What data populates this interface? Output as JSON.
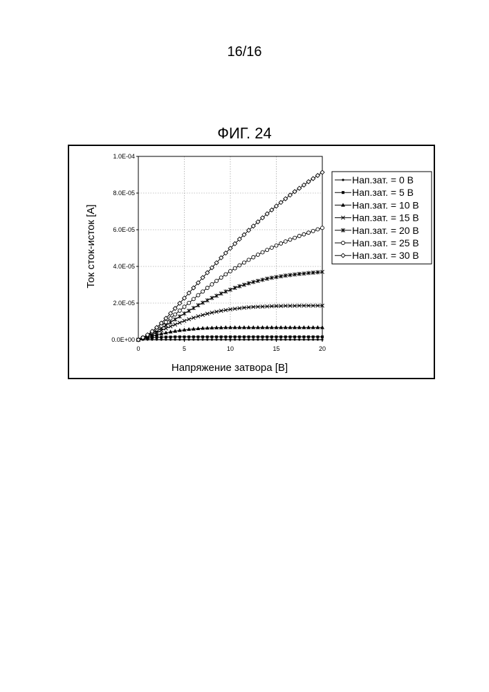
{
  "page": {
    "number": "16/16",
    "figure_title": "ФИГ. 24"
  },
  "chart_data": {
    "type": "line",
    "title": "",
    "xlabel": "Напряжение затвора [В]",
    "ylabel": "Ток сток-исток [А]",
    "xlim": [
      0,
      20
    ],
    "ylim": [
      0,
      0.0001
    ],
    "xticks": [
      "0",
      "5",
      "10",
      "15",
      "20"
    ],
    "yticks": [
      "0.0E+00",
      "2.0E-05",
      "4.0E-05",
      "6.0E-05",
      "8.0E-05",
      "1.0E-04"
    ],
    "grid": true,
    "legend_position": "right",
    "x": [
      0,
      0.5,
      1,
      1.5,
      2,
      2.5,
      3,
      3.5,
      4,
      4.5,
      5,
      5.5,
      6,
      6.5,
      7,
      7.5,
      8,
      8.5,
      9,
      9.5,
      10,
      10.5,
      11,
      11.5,
      12,
      12.5,
      13,
      13.5,
      14,
      14.5,
      15,
      15.5,
      16,
      16.5,
      17,
      17.5,
      18,
      18.5,
      19,
      19.5,
      20
    ],
    "series": [
      {
        "name": "Нап.зат. = 0 В",
        "marker": "dot",
        "values": [
          0.0,
          5e-08,
          1e-07,
          1e-07,
          1e-07,
          1e-07,
          1e-07,
          1e-07,
          1e-07,
          1e-07,
          1e-07,
          1e-07,
          1e-07,
          1e-07,
          1e-07,
          1e-07,
          1e-07,
          1e-07,
          1e-07,
          1e-07,
          1e-07,
          1e-07,
          1e-07,
          1e-07,
          1e-07,
          1e-07,
          1e-07,
          1e-07,
          1e-07,
          1e-07,
          1e-07,
          1e-07,
          1e-07,
          1e-07,
          1e-07,
          1e-07,
          1e-07,
          1e-07,
          1e-07,
          1e-07,
          1e-07
        ]
      },
      {
        "name": "Нап.зат. = 5 В",
        "marker": "square",
        "values": [
          0.0,
          4e-07,
          8e-07,
          1.1e-06,
          1.3e-06,
          1.4e-06,
          1.5e-06,
          1.5e-06,
          1.6e-06,
          1.6e-06,
          1.6e-06,
          1.6e-06,
          1.6e-06,
          1.6e-06,
          1.6e-06,
          1.6e-06,
          1.6e-06,
          1.6e-06,
          1.6e-06,
          1.6e-06,
          1.6e-06,
          1.6e-06,
          1.6e-06,
          1.6e-06,
          1.6e-06,
          1.6e-06,
          1.6e-06,
          1.6e-06,
          1.6e-06,
          1.6e-06,
          1.6e-06,
          1.6e-06,
          1.6e-06,
          1.6e-06,
          1.6e-06,
          1.6e-06,
          1.6e-06,
          1.6e-06,
          1.6e-06,
          1.6e-06,
          1.6e-06
        ]
      },
      {
        "name": "Нап.зат. = 10 В",
        "marker": "triangle",
        "values": [
          0.0,
          7e-07,
          1.4e-06,
          2.1e-06,
          2.7e-06,
          3.3e-06,
          3.8e-06,
          4.3e-06,
          4.7e-06,
          5.1e-06,
          5.4e-06,
          5.7e-06,
          5.9e-06,
          6.1e-06,
          6.3e-06,
          6.4e-06,
          6.5e-06,
          6.6e-06,
          6.6e-06,
          6.7e-06,
          6.7e-06,
          6.7e-06,
          6.7e-06,
          6.7e-06,
          6.7e-06,
          6.7e-06,
          6.7e-06,
          6.7e-06,
          6.7e-06,
          6.7e-06,
          6.7e-06,
          6.7e-06,
          6.7e-06,
          6.7e-06,
          6.7e-06,
          6.7e-06,
          6.7e-06,
          6.7e-06,
          6.7e-06,
          6.7e-06,
          6.7e-06
        ]
      },
      {
        "name": "Нап.зат. = 15 В",
        "marker": "x",
        "values": [
          0.0,
          9e-07,
          1.9e-06,
          2.9e-06,
          4e-06,
          5.1e-06,
          6.2e-06,
          7.3e-06,
          8.3e-06,
          9.3e-06,
          1.03e-05,
          1.12e-05,
          1.2e-05,
          1.28e-05,
          1.35e-05,
          1.42e-05,
          1.48e-05,
          1.53e-05,
          1.58e-05,
          1.62e-05,
          1.66e-05,
          1.69e-05,
          1.72e-05,
          1.75e-05,
          1.77e-05,
          1.79e-05,
          1.8e-05,
          1.81e-05,
          1.82e-05,
          1.83e-05,
          1.84e-05,
          1.84e-05,
          1.85e-05,
          1.85e-05,
          1.85e-05,
          1.86e-05,
          1.86e-05,
          1.86e-05,
          1.86e-05,
          1.86e-05,
          1.86e-05
        ]
      },
      {
        "name": "Нап.зат. = 20 В",
        "marker": "star",
        "values": [
          0.0,
          1e-06,
          2.2e-06,
          3.5e-06,
          4.9e-06,
          6.4e-06,
          7.9e-06,
          9.5e-06,
          1.11e-05,
          1.27e-05,
          1.43e-05,
          1.58e-05,
          1.73e-05,
          1.88e-05,
          2.02e-05,
          2.15e-05,
          2.28e-05,
          2.4e-05,
          2.52e-05,
          2.63e-05,
          2.73e-05,
          2.83e-05,
          2.92e-05,
          3e-05,
          3.08e-05,
          3.15e-05,
          3.21e-05,
          3.27e-05,
          3.33e-05,
          3.38e-05,
          3.42e-05,
          3.46e-05,
          3.5e-05,
          3.53e-05,
          3.56e-05,
          3.59e-05,
          3.61e-05,
          3.64e-05,
          3.66e-05,
          3.68e-05,
          3.7e-05
        ]
      },
      {
        "name": "Нап.зат. = 25 В",
        "marker": "circle",
        "values": [
          0.0,
          1.1e-06,
          2.4e-06,
          4e-06,
          5.7e-06,
          7.6e-06,
          9.6e-06,
          1.17e-05,
          1.38e-05,
          1.59e-05,
          1.8e-05,
          2.01e-05,
          2.22e-05,
          2.43e-05,
          2.63e-05,
          2.83e-05,
          3.02e-05,
          3.21e-05,
          3.39e-05,
          3.57e-05,
          3.74e-05,
          3.9e-05,
          4.06e-05,
          4.21e-05,
          4.36e-05,
          4.5e-05,
          4.64e-05,
          4.77e-05,
          4.9e-05,
          5.02e-05,
          5.14e-05,
          5.25e-05,
          5.36e-05,
          5.46e-05,
          5.56e-05,
          5.66e-05,
          5.75e-05,
          5.84e-05,
          5.93e-05,
          6.02e-05,
          6.1e-05
        ]
      },
      {
        "name": "Нап.зат. = 30 В",
        "marker": "diamond",
        "values": [
          0.0,
          1.2e-06,
          2.7e-06,
          4.6e-06,
          6.7e-06,
          9.1e-06,
          1.17e-05,
          1.44e-05,
          1.71e-05,
          1.99e-05,
          2.27e-05,
          2.55e-05,
          2.83e-05,
          3.11e-05,
          3.39e-05,
          3.66e-05,
          3.93e-05,
          4.2e-05,
          4.47e-05,
          4.73e-05,
          4.99e-05,
          5.24e-05,
          5.49e-05,
          5.73e-05,
          5.97e-05,
          6.2e-05,
          6.43e-05,
          6.65e-05,
          6.87e-05,
          7.08e-05,
          7.29e-05,
          7.49e-05,
          7.69e-05,
          7.89e-05,
          8.08e-05,
          8.26e-05,
          8.44e-05,
          8.62e-05,
          8.79e-05,
          8.96e-05,
          9.13e-05
        ]
      }
    ]
  }
}
